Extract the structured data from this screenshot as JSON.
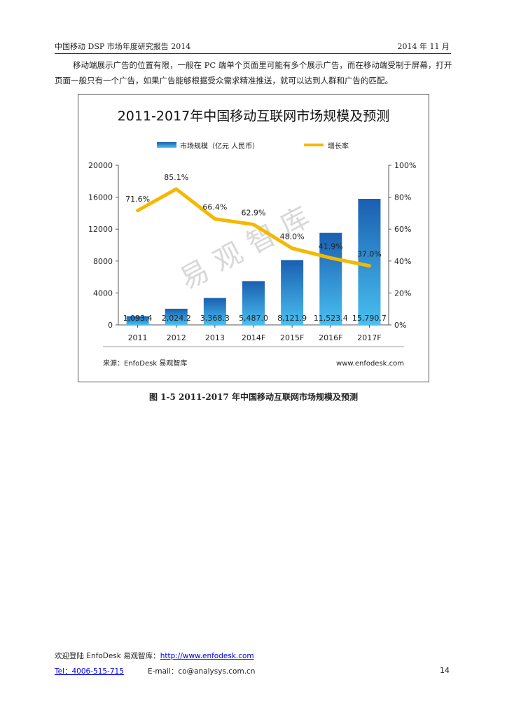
{
  "header": {
    "left": "中国移动 DSP 市场年度研究报告 2014",
    "right": "2014 年 11 月"
  },
  "body": {
    "paragraph": "移动端展示广告的位置有限，一般在 PC 端单个页面里可能有多个展示广告，而在移动端受制于屏幕，打开页面一般只有一个广告，如果广告能够根据受众需求精准推送，就可以达到人群和广告的匹配。"
  },
  "chart_data": {
    "type": "bar",
    "title": "2011-2017年中国移动互联网市场规模及预测",
    "categories": [
      "2011",
      "2012",
      "2013",
      "2014F",
      "2015F",
      "2016F",
      "2017F"
    ],
    "series": [
      {
        "name": "市场规模（亿元 人民币）",
        "type": "bar",
        "axis": "left",
        "values": [
          1093.4,
          2024.2,
          3368.3,
          5487.0,
          8121.9,
          11523.4,
          15790.7
        ],
        "labels": [
          "1,093.4",
          "2,024.2",
          "3,368.3",
          "5,487.0",
          "8,121.9",
          "11,523.4",
          "15,790.7"
        ],
        "color": "#2f80c8"
      },
      {
        "name": "增长率",
        "type": "line",
        "axis": "right",
        "values": [
          71.6,
          85.1,
          66.4,
          62.9,
          48.0,
          41.9,
          37.0
        ],
        "labels": [
          "71.6%",
          "85.1%",
          "66.4%",
          "62.9%",
          "48.0%",
          "41.9%",
          "37.0%"
        ],
        "color": "#f5b800"
      }
    ],
    "y_left": {
      "ylim": [
        0,
        20000
      ],
      "ticks": [
        "0",
        "4000",
        "8000",
        "12000",
        "16000",
        "20000"
      ]
    },
    "y_right": {
      "ylim": [
        0,
        100
      ],
      "ticks": [
        "0%",
        "20%",
        "40%",
        "60%",
        "80%",
        "100%"
      ]
    },
    "legend": "top",
    "grid": false,
    "watermark": "易观智库",
    "source": "来源：EnfoDesk 易观智库",
    "site": "www.enfodesk.com"
  },
  "caption": "图 1-5 2011-2017 年中国移动互联网市场规模及预测",
  "footer": {
    "welcome": "欢迎登陆 EnfoDesk 易观智库：",
    "url": "http://www.enfodesk.com",
    "tel": "Tel：4006-515-715",
    "email": "E-mail：co@analysys.com.cn",
    "page": "14"
  }
}
